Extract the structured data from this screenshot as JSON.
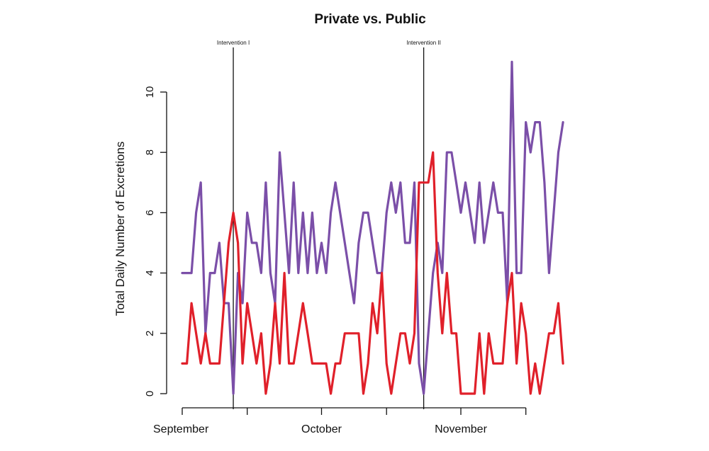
{
  "chart_data": {
    "type": "line",
    "title": "Private vs. Public",
    "xlabel": "",
    "ylabel": "Total Daily Number of Excretions",
    "ylim": [
      0,
      11
    ],
    "yticks": [
      0,
      2,
      4,
      6,
      8,
      10
    ],
    "grid": false,
    "x_start_day": 1,
    "month_labels": [
      {
        "label": "September",
        "day": 1
      },
      {
        "label": "October",
        "day": 31
      },
      {
        "label": "November",
        "day": 61
      }
    ],
    "x_ticks_days": [
      1,
      15,
      31,
      45,
      61,
      75
    ],
    "annotations": [
      {
        "label": "Intervention I",
        "day": 12
      },
      {
        "label": "Intervention II",
        "day": 53
      }
    ],
    "series": [
      {
        "name": "Public",
        "color": "#7b4fa8",
        "values": [
          4,
          4,
          4,
          6,
          7,
          2,
          4,
          4,
          5,
          3,
          3,
          0,
          4,
          3,
          6,
          5,
          5,
          4,
          7,
          4,
          3,
          8,
          6,
          4,
          7,
          4,
          6,
          4,
          6,
          4,
          5,
          4,
          6,
          7,
          6,
          5,
          4,
          3,
          5,
          6,
          6,
          5,
          4,
          4,
          6,
          7,
          6,
          7,
          5,
          5,
          7,
          1,
          0,
          2,
          4,
          5,
          4,
          8,
          8,
          7,
          6,
          7,
          6,
          5,
          7,
          5,
          6,
          7,
          6,
          6,
          3,
          11,
          4,
          4,
          9,
          8,
          9,
          9,
          7,
          4,
          6,
          8,
          9
        ]
      },
      {
        "name": "Private",
        "color": "#e0202a",
        "values": [
          1,
          1,
          3,
          2,
          1,
          2,
          1,
          1,
          1,
          3,
          5,
          6,
          5,
          1,
          3,
          2,
          1,
          2,
          0,
          1,
          3,
          1,
          4,
          1,
          1,
          2,
          3,
          2,
          1,
          1,
          1,
          1,
          0,
          1,
          1,
          2,
          2,
          2,
          2,
          0,
          1,
          3,
          2,
          4,
          1,
          0,
          1,
          2,
          2,
          1,
          2,
          7,
          7,
          7,
          8,
          4,
          2,
          4,
          2,
          2,
          0,
          0,
          0,
          0,
          2,
          0,
          2,
          1,
          1,
          1,
          3,
          4,
          1,
          3,
          2,
          0,
          1,
          0,
          1,
          2,
          2,
          3,
          1
        ]
      }
    ]
  }
}
